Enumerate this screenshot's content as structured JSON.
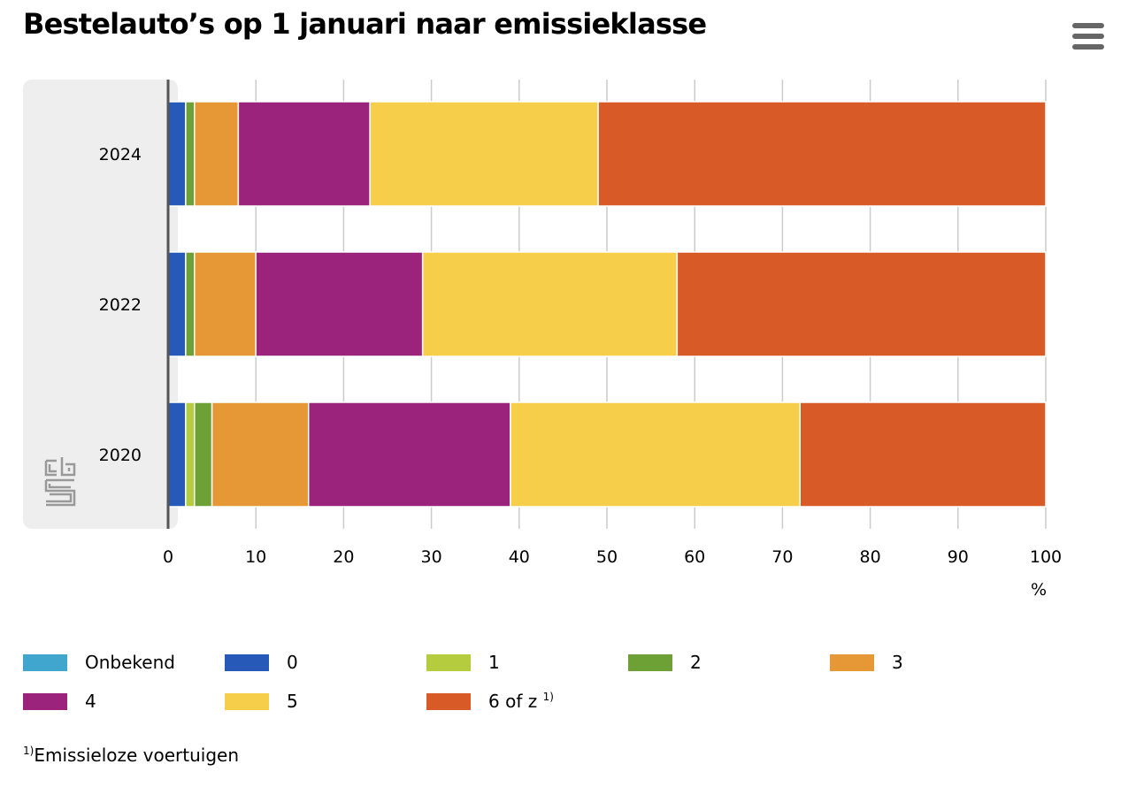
{
  "title": "Bestelauto’s op 1 januari naar emissieklasse",
  "menu_icon": "hamburger-menu-icon",
  "logo_icon": "cbs-logo-icon",
  "footnote": {
    "marker": "1)",
    "text": "Emissieloze voertuigen"
  },
  "chart_data": {
    "type": "bar",
    "orientation": "horizontal",
    "stacked": true,
    "categories": [
      "2024",
      "2022",
      "2020"
    ],
    "xlabel": "%",
    "xlim": [
      0,
      100
    ],
    "xticks": [
      "0",
      "10",
      "20",
      "30",
      "40",
      "50",
      "60",
      "70",
      "80",
      "90",
      "100"
    ],
    "grid": true,
    "legend_placement": "bottom",
    "series": [
      {
        "name": "Onbekend",
        "color": "#41a6cd",
        "values": [
          0,
          0,
          0
        ]
      },
      {
        "name": "0",
        "color": "#275ab8",
        "values": [
          2,
          2,
          2
        ]
      },
      {
        "name": "1",
        "color": "#b5cc3e",
        "values": [
          0,
          0,
          1
        ]
      },
      {
        "name": "2",
        "color": "#6da136",
        "values": [
          1,
          1,
          2
        ]
      },
      {
        "name": "3",
        "color": "#e69837",
        "values": [
          5,
          7,
          11
        ]
      },
      {
        "name": "4",
        "color": "#9c237b",
        "values": [
          15,
          19,
          23
        ]
      },
      {
        "name": "5",
        "color": "#f6ce49",
        "values": [
          26,
          29,
          33
        ]
      },
      {
        "name": "6 of z",
        "footnote_marker": "1)",
        "color": "#d85a27",
        "values": [
          51,
          42,
          28
        ]
      }
    ]
  }
}
